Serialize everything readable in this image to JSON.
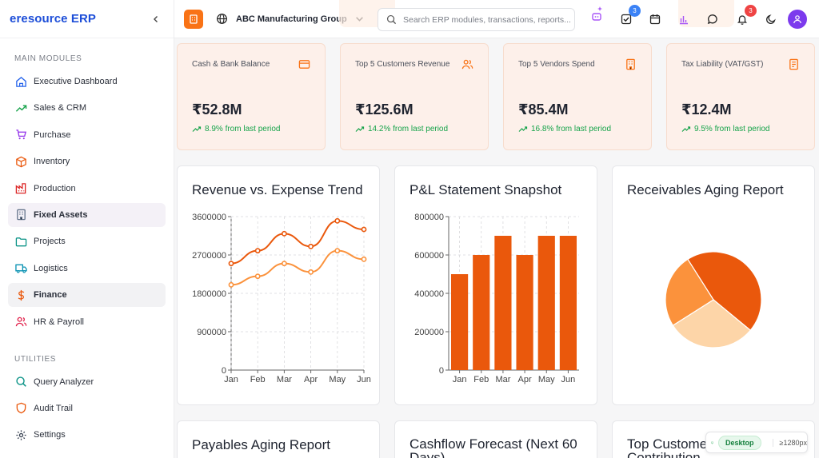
{
  "brand": "eresource ERP",
  "sidebar": {
    "main_title": "MAIN MODULES",
    "main_items": [
      {
        "label": "Executive Dashboard",
        "icon": "home-icon"
      },
      {
        "label": "Sales & CRM",
        "icon": "trend-up-icon"
      },
      {
        "label": "Purchase",
        "icon": "cart-icon"
      },
      {
        "label": "Inventory",
        "icon": "box-icon"
      },
      {
        "label": "Production",
        "icon": "factory-icon"
      },
      {
        "label": "Fixed Assets",
        "icon": "building-icon"
      },
      {
        "label": "Projects",
        "icon": "folder-icon"
      },
      {
        "label": "Logistics",
        "icon": "truck-icon"
      },
      {
        "label": "Finance",
        "icon": "dollar-icon"
      },
      {
        "label": "HR & Payroll",
        "icon": "users-icon"
      }
    ],
    "utilities_title": "UTILITIES",
    "utility_items": [
      {
        "label": "Query Analyzer",
        "icon": "search-icon"
      },
      {
        "label": "Audit Trail",
        "icon": "shield-icon"
      },
      {
        "label": "Settings",
        "icon": "gear-icon"
      }
    ]
  },
  "topbar": {
    "org_name": "ABC Manufacturing Group",
    "search_placeholder": "Search ERP modules, transactions, reports...",
    "tasks_badge": "3",
    "notifications_badge": "3"
  },
  "kpis": [
    {
      "label": "Cash & Bank Balance",
      "value": "₹52.8M",
      "trend": "8.9% from last period",
      "icon": "credit-card-icon"
    },
    {
      "label": "Top 5 Customers Revenue",
      "value": "₹125.6M",
      "trend": "14.2% from last period",
      "icon": "users-icon"
    },
    {
      "label": "Top 5 Vendors Spend",
      "value": "₹85.4M",
      "trend": "16.8% from last period",
      "icon": "building-icon"
    },
    {
      "label": "Tax Liability (VAT/GST)",
      "value": "₹12.4M",
      "trend": "9.5% from last period",
      "icon": "receipt-icon"
    }
  ],
  "cards": {
    "revenue_title": "Revenue vs. Expense Trend",
    "pl_title": "P&L Statement Snapshot",
    "receivables_title": "Receivables Aging Report",
    "payables_title": "Payables Aging Report",
    "cashflow_title": "Cashflow Forecast (Next 60 Days)",
    "top_customers_title": "Top Customer Contribution"
  },
  "viewport": {
    "tag": "Desktop",
    "range": "≥1280px"
  },
  "colors": {
    "accent": "#f97316",
    "dark_orange": "#ea580c",
    "light_orange": "#fb923c",
    "peach": "#fdd5a8",
    "brand_blue": "#1d4ed8"
  },
  "chart_data": [
    {
      "type": "line",
      "title": "Revenue vs. Expense Trend",
      "categories": [
        "Jan",
        "Feb",
        "Mar",
        "Apr",
        "May",
        "Jun"
      ],
      "ylim": [
        0,
        3600000
      ],
      "yticks": [
        0,
        900000,
        1800000,
        2700000,
        3600000
      ],
      "grid": true,
      "series": [
        {
          "color": "#ea580c",
          "values": [
            2500000,
            2800000,
            3200000,
            2900000,
            3500000,
            3300000
          ]
        },
        {
          "color": "#fb923c",
          "values": [
            2000000,
            2200000,
            2500000,
            2300000,
            2800000,
            2600000
          ]
        }
      ]
    },
    {
      "type": "bar",
      "title": "P&L Statement Snapshot",
      "categories": [
        "Jan",
        "Feb",
        "Mar",
        "Apr",
        "May",
        "Jun"
      ],
      "values": [
        500000,
        600000,
        700000,
        600000,
        700000,
        700000
      ],
      "ylim": [
        0,
        800000
      ],
      "yticks": [
        0,
        200000,
        400000,
        600000,
        800000
      ],
      "grid": true,
      "color": "#ea580c"
    },
    {
      "type": "pie",
      "title": "Receivables Aging Report",
      "values": [
        45,
        30,
        25
      ],
      "colors": [
        "#ea580c",
        "#fdd5a8",
        "#fb923c"
      ]
    }
  ]
}
